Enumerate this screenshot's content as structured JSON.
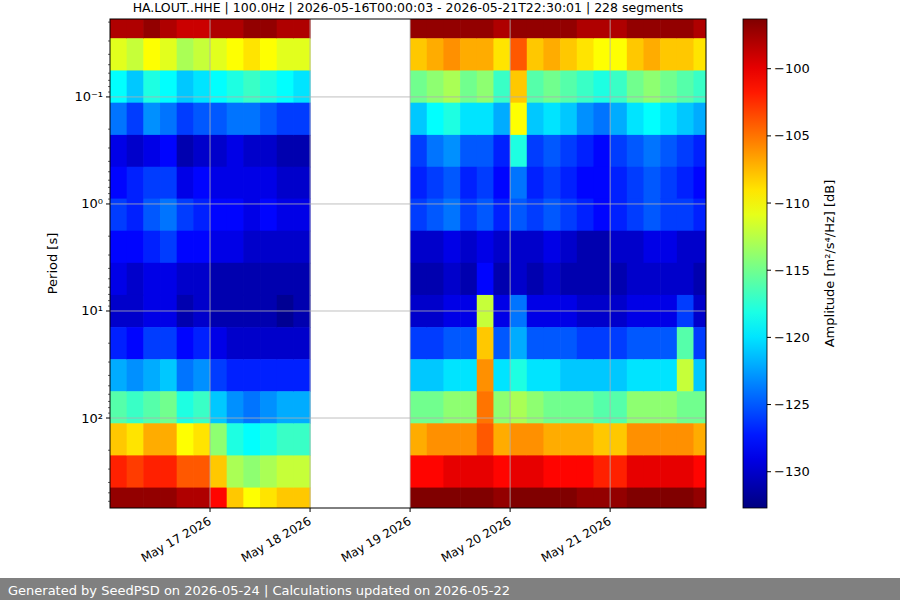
{
  "chart_data": {
    "type": "heatmap",
    "title": "HA.LOUT..HHE | 100.0Hz | 2026-05-16T00:00:03 - 2026-05-21T22:30:01 | 228 segments",
    "ylabel": "Period [s]",
    "footer": "Generated by SeedPSD on 2026-05-24 | Calculations updated on 2026-05-22",
    "log": "y",
    "grid": true,
    "xlim": [
      "2026-05-16T00:00:03",
      "2026-05-21T23:00:01"
    ],
    "ylim": [
      693,
      0.0187
    ],
    "xticks": [
      {
        "value": "2026-05-17T00:00",
        "label": "May 17 2026"
      },
      {
        "value": "2026-05-18T00:00",
        "label": "May 18 2026"
      },
      {
        "value": "2026-05-19T00:00",
        "label": "May 19 2026"
      },
      {
        "value": "2026-05-20T00:00",
        "label": "May 20 2026"
      },
      {
        "value": "2026-05-21T00:00",
        "label": "May 21 2026"
      }
    ],
    "yticks": [
      {
        "value": 0.1,
        "label": "10⁻¹"
      },
      {
        "value": 1,
        "label": "10⁰"
      },
      {
        "value": 10,
        "label": "10¹"
      },
      {
        "value": 100,
        "label": "10²"
      }
    ],
    "x": [
      "2026-05-16T02:00",
      "2026-05-16T06:00",
      "2026-05-16T10:00",
      "2026-05-16T14:00",
      "2026-05-16T18:00",
      "2026-05-16T22:00",
      "2026-05-17T02:00",
      "2026-05-17T06:00",
      "2026-05-17T10:00",
      "2026-05-17T14:00",
      "2026-05-17T18:00",
      "2026-05-17T22:00",
      "2026-05-18T02:00",
      "2026-05-18T06:00",
      "2026-05-18T10:00",
      "2026-05-18T14:00",
      "2026-05-18T18:00",
      "2026-05-18T22:00",
      "2026-05-19T02:00",
      "2026-05-19T06:00",
      "2026-05-19T10:00",
      "2026-05-19T14:00",
      "2026-05-19T18:00",
      "2026-05-19T22:00",
      "2026-05-20T02:00",
      "2026-05-20T06:00",
      "2026-05-20T10:00",
      "2026-05-20T14:00",
      "2026-05-20T18:00",
      "2026-05-20T22:00",
      "2026-05-21T02:00",
      "2026-05-21T06:00",
      "2026-05-21T10:00",
      "2026-05-21T14:00",
      "2026-05-21T18:00",
      "2026-05-21T22:00"
    ],
    "y": [
      0.02,
      0.04,
      0.08,
      0.16,
      0.32,
      0.63,
      1.26,
      2.51,
      5.01,
      10,
      20,
      39.8,
      79.4,
      158,
      316,
      631
    ],
    "values": [
      [
        -98,
        -111,
        -119,
        -124,
        -129,
        -128,
        -126,
        -128,
        -129,
        -130,
        -127,
        -122,
        -116,
        -108,
        -102,
        -97
      ],
      [
        -98,
        -112,
        -121,
        -126,
        -130,
        -127,
        -127,
        -128,
        -130,
        -130,
        -128,
        -123,
        -117,
        -109,
        -103,
        -97
      ],
      [
        -97,
        -110,
        -118,
        -123,
        -129,
        -126,
        -125,
        -127,
        -129,
        -129,
        -126,
        -122,
        -116,
        -107,
        -102,
        -97
      ],
      [
        -98,
        -111,
        -119,
        -124,
        -128,
        -126,
        -124,
        -126,
        -129,
        -129,
        -126,
        -121,
        -115,
        -107,
        -102,
        -97
      ],
      [
        -99,
        -113,
        -121,
        -126,
        -131,
        -129,
        -126,
        -128,
        -130,
        -131,
        -128,
        -124,
        -118,
        -110,
        -104,
        -98
      ],
      [
        -99,
        -112,
        -120,
        -125,
        -130,
        -128,
        -127,
        -128,
        -130,
        -130,
        -127,
        -123,
        -117,
        -109,
        -104,
        -98
      ],
      [
        -98,
        -111,
        -119,
        -125,
        -130,
        -129,
        -128,
        -129,
        -131,
        -131,
        -129,
        -126,
        -121,
        -114,
        -108,
        -101
      ],
      [
        -98,
        -110,
        -118,
        -124,
        -129,
        -129,
        -128,
        -129,
        -131,
        -131,
        -130,
        -127,
        -123,
        -118,
        -113,
        -108
      ],
      [
        -97,
        -109,
        -117,
        -124,
        -130,
        -129,
        -129,
        -130,
        -131,
        -131,
        -130,
        -127,
        -124,
        -119,
        -114,
        -110
      ],
      [
        -97,
        -110,
        -118,
        -125,
        -130,
        -129,
        -128,
        -130,
        -131,
        -131,
        -130,
        -127,
        -123,
        -118,
        -113,
        -109
      ],
      [
        -98,
        -111,
        -119,
        -126,
        -131,
        -130,
        -129,
        -130,
        -131,
        -132,
        -130,
        -127,
        -122,
        -117,
        -112,
        -108
      ],
      [
        -98,
        -111,
        -120,
        -126,
        -131,
        -130,
        -129,
        -130,
        -131,
        -131,
        -130,
        -127,
        -122,
        -117,
        -112,
        -108
      ],
      [
        null,
        null,
        null,
        null,
        null,
        null,
        null,
        null,
        null,
        null,
        null,
        null,
        null,
        null,
        null,
        null
      ],
      [
        null,
        null,
        null,
        null,
        null,
        null,
        null,
        null,
        null,
        null,
        null,
        null,
        null,
        null,
        null,
        null
      ],
      [
        null,
        null,
        null,
        null,
        null,
        null,
        null,
        null,
        null,
        null,
        null,
        null,
        null,
        null,
        null,
        null
      ],
      [
        null,
        null,
        null,
        null,
        null,
        null,
        null,
        null,
        null,
        null,
        null,
        null,
        null,
        null,
        null,
        null
      ],
      [
        null,
        null,
        null,
        null,
        null,
        null,
        null,
        null,
        null,
        null,
        null,
        null,
        null,
        null,
        null,
        null
      ],
      [
        null,
        null,
        null,
        null,
        null,
        null,
        null,
        null,
        null,
        null,
        null,
        null,
        null,
        null,
        null,
        null
      ],
      [
        -97,
        -108,
        -115,
        -121,
        -126,
        -127,
        -126,
        -130,
        -131,
        -130,
        -126,
        -121,
        -115,
        -107,
        -101,
        -96
      ],
      [
        -97,
        -107,
        -114,
        -119,
        -124,
        -126,
        -125,
        -130,
        -131,
        -130,
        -126,
        -121,
        -115,
        -106,
        -101,
        -96
      ],
      [
        -97,
        -106,
        -113,
        -118,
        -123,
        -125,
        -124,
        -129,
        -130,
        -129,
        -125,
        -120,
        -114,
        -106,
        -100,
        -96
      ],
      [
        -97,
        -107,
        -115,
        -120,
        -125,
        -127,
        -126,
        -130,
        -131,
        -129,
        -125,
        -120,
        -114,
        -106,
        -100,
        -96
      ],
      [
        -97,
        -107,
        -114,
        -120,
        -125,
        -126,
        -125,
        -129,
        -128,
        -112,
        -108,
        -106,
        -105,
        -104,
        -100,
        -96
      ],
      [
        -98,
        -109,
        -117,
        -122,
        -127,
        -128,
        -127,
        -130,
        -131,
        -129,
        -125,
        -120,
        -114,
        -107,
        -101,
        -97
      ],
      [
        -97,
        -104,
        -108,
        -110,
        -118,
        -124,
        -125,
        -130,
        -130,
        -124,
        -122,
        -118,
        -113,
        -106,
        -100,
        -96
      ],
      [
        -97,
        -108,
        -116,
        -121,
        -126,
        -127,
        -126,
        -130,
        -131,
        -129,
        -125,
        -120,
        -114,
        -106,
        -100,
        -96
      ],
      [
        -97,
        -107,
        -115,
        -120,
        -125,
        -126,
        -125,
        -129,
        -130,
        -129,
        -125,
        -120,
        -115,
        -107,
        -101,
        -96
      ],
      [
        -97,
        -108,
        -116,
        -121,
        -126,
        -127,
        -126,
        -130,
        -131,
        -129,
        -125,
        -121,
        -115,
        -107,
        -101,
        -96
      ],
      [
        -98,
        -109,
        -117,
        -123,
        -127,
        -128,
        -127,
        -131,
        -131,
        -130,
        -126,
        -121,
        -115,
        -107,
        -101,
        -97
      ],
      [
        -98,
        -110,
        -118,
        -124,
        -128,
        -128,
        -128,
        -131,
        -131,
        -130,
        -126,
        -121,
        -116,
        -108,
        -102,
        -97
      ],
      [
        -98,
        -110,
        -117,
        -122,
        -126,
        -127,
        -127,
        -130,
        -131,
        -130,
        -126,
        -121,
        -116,
        -108,
        -102,
        -97
      ],
      [
        -97,
        -108,
        -115,
        -120,
        -125,
        -126,
        -126,
        -130,
        -130,
        -129,
        -125,
        -120,
        -114,
        -106,
        -100,
        -96
      ],
      [
        -97,
        -107,
        -114,
        -119,
        -124,
        -125,
        -125,
        -129,
        -130,
        -129,
        -125,
        -120,
        -114,
        -106,
        -100,
        -96
      ],
      [
        -97,
        -108,
        -115,
        -120,
        -125,
        -126,
        -126,
        -129,
        -130,
        -129,
        -125,
        -120,
        -114,
        -106,
        -100,
        -96
      ],
      [
        -97,
        -108,
        -116,
        -121,
        -126,
        -127,
        -126,
        -130,
        -130,
        -126,
        -116,
        -112,
        -115,
        -106,
        -100,
        -96
      ],
      [
        -98,
        -109,
        -117,
        -122,
        -127,
        -128,
        -127,
        -130,
        -131,
        -130,
        -126,
        -121,
        -115,
        -107,
        -101,
        -97
      ]
    ],
    "colorbar": {
      "lim": [
        -132.7,
        -96.3
      ],
      "ticks": [
        -130,
        -125,
        -120,
        -115,
        -110,
        -105,
        -100
      ],
      "label": "Amplitude [m²/s⁴/Hz] [dB]"
    }
  }
}
